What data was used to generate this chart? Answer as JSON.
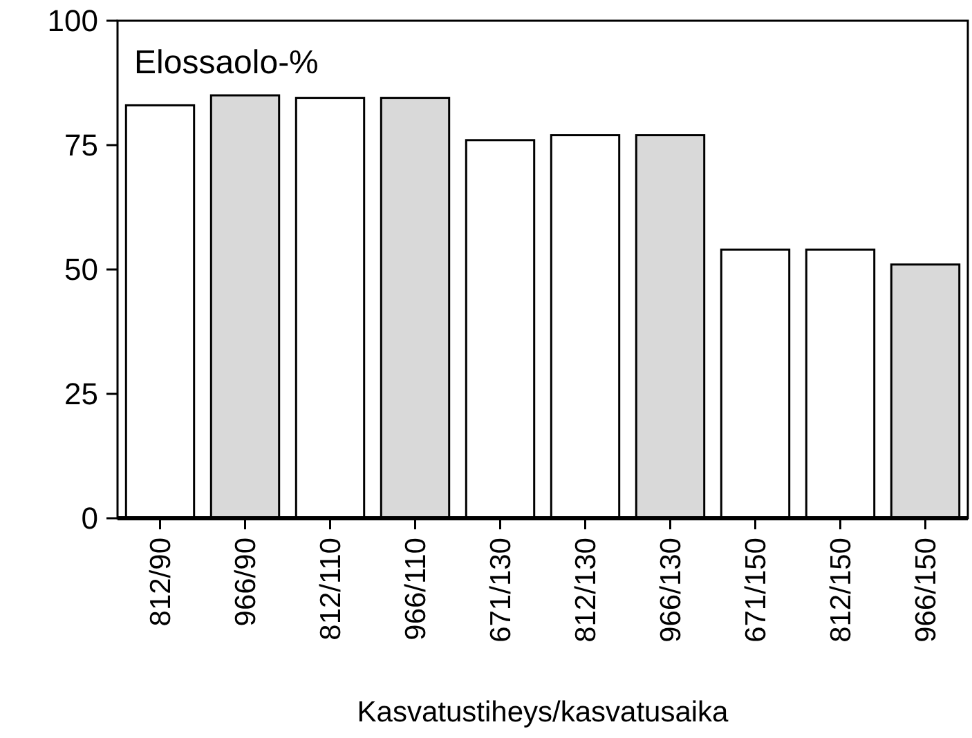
{
  "chart_data": {
    "type": "bar",
    "ylabel": "Elossaolo-%",
    "xlabel": "Kasvatustiheys/kasvatusaika",
    "categories": [
      "812/90",
      "966/90",
      "812/110",
      "966/110",
      "671/130",
      "812/130",
      "966/130",
      "671/150",
      "812/150",
      "966/150"
    ],
    "values": [
      83,
      85,
      84.5,
      84.5,
      76,
      77,
      77,
      54,
      54,
      51
    ],
    "colors": [
      "#ffffff",
      "#d9d9d9",
      "#ffffff",
      "#d9d9d9",
      "#ffffff",
      "#ffffff",
      "#d9d9d9",
      "#ffffff",
      "#ffffff",
      "#d9d9d9"
    ],
    "ylim": [
      0,
      100
    ],
    "yticks": [
      0,
      25,
      50,
      75,
      100
    ],
    "grid": false
  }
}
